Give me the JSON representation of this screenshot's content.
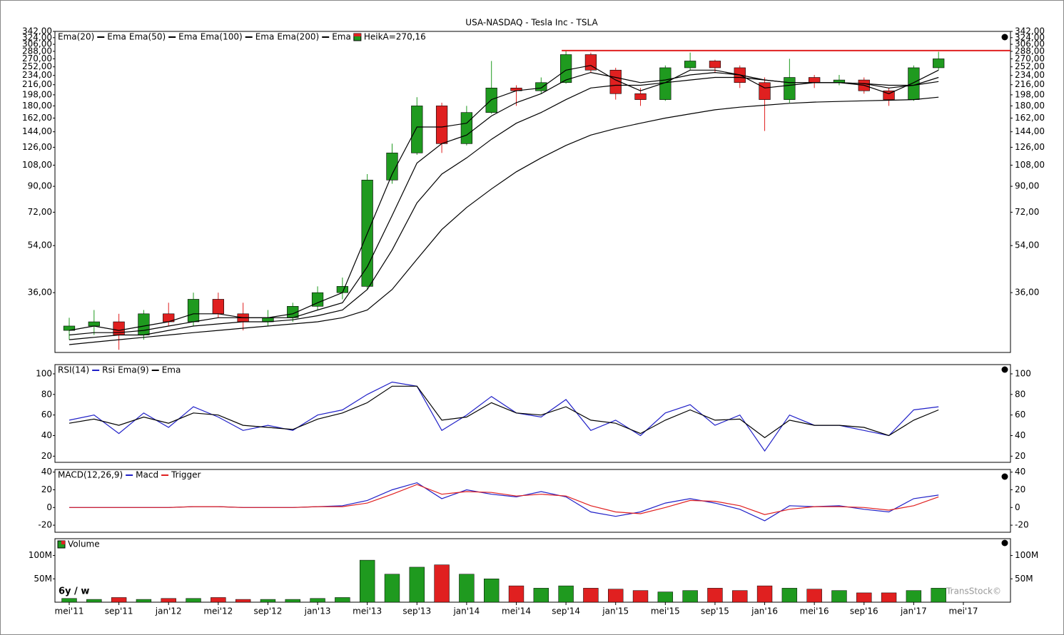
{
  "title": "USA-NASDAQ - Tesla Inc - TSLA",
  "period": "6y / w",
  "watermark": "TransStock©",
  "categories": [
    "mei'11",
    null,
    "sep'11",
    null,
    "jan'12",
    null,
    "mei'12",
    null,
    "sep'12",
    null,
    "jan'13",
    null,
    "mei'13",
    null,
    "sep'13",
    null,
    "jan'14",
    null,
    "mei'14",
    null,
    "sep'14",
    null,
    "jan'15",
    null,
    "mei'15",
    null,
    "sep'15",
    null,
    "jan'16",
    null,
    "mei'16",
    null,
    "sep'16",
    null,
    "jan'17",
    null,
    "mei'17"
  ],
  "chart_data": [
    {
      "type": "candlestick",
      "log_scale": true,
      "ylim": [
        21.5,
        342
      ],
      "yticks": [
        {
          "value": 36,
          "label": "36,00"
        },
        {
          "value": 54,
          "label": "54,00"
        },
        {
          "value": 72,
          "label": "72,00"
        },
        {
          "value": 90,
          "label": "90,00"
        },
        {
          "value": 108,
          "label": "108,00"
        },
        {
          "value": 126,
          "label": "126,00"
        },
        {
          "value": 144,
          "label": "144,00"
        },
        {
          "value": 162,
          "label": "162,00"
        },
        {
          "value": 180,
          "label": "180,00"
        },
        {
          "value": 198,
          "label": "198,00"
        },
        {
          "value": 216,
          "label": "216,00"
        },
        {
          "value": 234,
          "label": "234,00"
        },
        {
          "value": 252,
          "label": "252,00"
        },
        {
          "value": 270,
          "label": "270,00"
        },
        {
          "value": 288,
          "label": "288,00"
        },
        {
          "value": 306,
          "label": "306,00"
        },
        {
          "value": 324,
          "label": "324,00"
        },
        {
          "value": 342,
          "label": "342,00"
        }
      ],
      "series": [
        {
          "label": "Ema(20)",
          "name": "Ema",
          "color": "#000000",
          "values": [
            26,
            27,
            26,
            27,
            28,
            30,
            30,
            29,
            29,
            30,
            33,
            36,
            60,
            100,
            150,
            150,
            155,
            190,
            205,
            210,
            245,
            255,
            225,
            205,
            220,
            245,
            245,
            235,
            210,
            215,
            220,
            220,
            215,
            200,
            220,
            245,
            null
          ]
        },
        {
          "label": "Ema(50)",
          "name": "Ema",
          "color": "#000000",
          "values": [
            25,
            25.5,
            25.5,
            26,
            27,
            28,
            29,
            29,
            29,
            29,
            31,
            33,
            45,
            70,
            110,
            130,
            140,
            165,
            185,
            200,
            225,
            240,
            230,
            220,
            225,
            235,
            240,
            235,
            225,
            220,
            220,
            220,
            218,
            210,
            215,
            230,
            null
          ]
        },
        {
          "label": "Ema(100)",
          "name": "Ema",
          "color": "#000000",
          "values": [
            24,
            24.5,
            25,
            25,
            26,
            27,
            27.5,
            28,
            28,
            28.5,
            29.5,
            31,
            37,
            52,
            78,
            100,
            115,
            135,
            155,
            170,
            190,
            210,
            215,
            215,
            220,
            225,
            230,
            230,
            225,
            220,
            220,
            220,
            218,
            215,
            215,
            222,
            null
          ]
        },
        {
          "label": "Ema(200)",
          "name": "Ema",
          "color": "#000000",
          "values": [
            23,
            23.5,
            24,
            24.5,
            25,
            25.5,
            26,
            26.5,
            27,
            27.5,
            28,
            29,
            31,
            37,
            48,
            62,
            75,
            88,
            102,
            115,
            128,
            140,
            148,
            155,
            162,
            168,
            174,
            178,
            181,
            184,
            186,
            187,
            188,
            189,
            190,
            194,
            null
          ]
        }
      ],
      "candles": {
        "label": "HeikA=270,16",
        "up_color": "#1f9a1f",
        "down_color": "#e02020",
        "open": [
          26,
          27,
          28,
          25,
          30,
          28,
          34,
          30,
          28,
          29,
          32,
          36,
          38,
          95,
          120,
          180,
          130,
          170,
          210,
          205,
          220,
          280,
          245,
          200,
          190,
          250,
          265,
          250,
          220,
          190,
          230,
          220,
          225,
          205,
          190,
          250,
          null
        ],
        "high": [
          29,
          31,
          30,
          31,
          33,
          36,
          36,
          33,
          31,
          33,
          38,
          41,
          100,
          130,
          194,
          185,
          180,
          265,
          215,
          230,
          291,
          285,
          250,
          210,
          255,
          285,
          268,
          255,
          230,
          270,
          235,
          235,
          230,
          210,
          255,
          287,
          null
        ],
        "low": [
          24,
          25,
          22,
          24,
          27,
          27,
          29,
          26,
          27,
          28,
          31,
          34,
          37,
          92,
          118,
          120,
          128,
          168,
          180,
          200,
          218,
          240,
          190,
          180,
          188,
          245,
          240,
          210,
          145,
          185,
          210,
          215,
          200,
          180,
          188,
          245,
          null
        ],
        "close": [
          27,
          28,
          25,
          30,
          28,
          34,
          30,
          28,
          29,
          32,
          36,
          38,
          95,
          120,
          180,
          130,
          170,
          210,
          205,
          220,
          280,
          245,
          200,
          190,
          250,
          265,
          250,
          220,
          190,
          230,
          220,
          225,
          205,
          190,
          250,
          270,
          null
        ]
      },
      "hline": {
        "value": 290,
        "color": "#e02020"
      }
    },
    {
      "type": "line",
      "ylim": [
        14,
        109
      ],
      "yticks": [
        20,
        40,
        60,
        80,
        100
      ],
      "series": [
        {
          "label": "RSI(14)",
          "name": "Rsi",
          "color": "#2020c8",
          "values": [
            55,
            60,
            42,
            62,
            48,
            68,
            58,
            45,
            50,
            45,
            60,
            65,
            80,
            92,
            88,
            45,
            60,
            78,
            62,
            58,
            75,
            45,
            55,
            40,
            62,
            70,
            50,
            60,
            25,
            60,
            50,
            50,
            45,
            40,
            65,
            68,
            null
          ]
        },
        {
          "label": "Ema(9)",
          "name": "Ema",
          "color": "#000000",
          "values": [
            52,
            56,
            50,
            58,
            52,
            62,
            60,
            50,
            48,
            46,
            56,
            62,
            72,
            88,
            88,
            55,
            58,
            72,
            62,
            60,
            68,
            55,
            52,
            42,
            55,
            65,
            55,
            56,
            38,
            55,
            50,
            50,
            48,
            40,
            55,
            65,
            null
          ]
        }
      ]
    },
    {
      "type": "line",
      "label": "MACD(12,26,9)",
      "ylim": [
        -28,
        43
      ],
      "yticks": [
        -20,
        0,
        20,
        40
      ],
      "series": [
        {
          "name": "Macd",
          "color": "#2020c8",
          "values": [
            0,
            0,
            0,
            0,
            0,
            1,
            1,
            0,
            0,
            0,
            1,
            2,
            8,
            20,
            28,
            10,
            20,
            15,
            12,
            18,
            12,
            -5,
            -10,
            -5,
            5,
            10,
            5,
            -2,
            -15,
            2,
            1,
            2,
            -2,
            -5,
            10,
            14,
            null
          ]
        },
        {
          "name": "Trigger",
          "color": "#e02020",
          "values": [
            0,
            0,
            0,
            0,
            0,
            1,
            1,
            0,
            0,
            0,
            1,
            1,
            5,
            15,
            26,
            15,
            18,
            17,
            13,
            15,
            13,
            2,
            -5,
            -7,
            0,
            8,
            7,
            2,
            -8,
            -2,
            1,
            1,
            0,
            -3,
            2,
            12,
            null
          ]
        }
      ]
    },
    {
      "type": "bar",
      "ylim": [
        0,
        136000000
      ],
      "yticks": [
        {
          "value": 50000000,
          "label": "50M"
        },
        {
          "value": 100000000,
          "label": "100M"
        }
      ],
      "series": [
        {
          "name": "Volume",
          "values": [
            8000000,
            6000000,
            10000000,
            6000000,
            8000000,
            8000000,
            10000000,
            6000000,
            6000000,
            6000000,
            8000000,
            10000000,
            90000000,
            60000000,
            75000000,
            80000000,
            60000000,
            50000000,
            35000000,
            30000000,
            35000000,
            30000000,
            28000000,
            25000000,
            22000000,
            25000000,
            30000000,
            25000000,
            35000000,
            30000000,
            28000000,
            25000000,
            20000000,
            20000000,
            25000000,
            30000000,
            null
          ]
        }
      ]
    }
  ]
}
